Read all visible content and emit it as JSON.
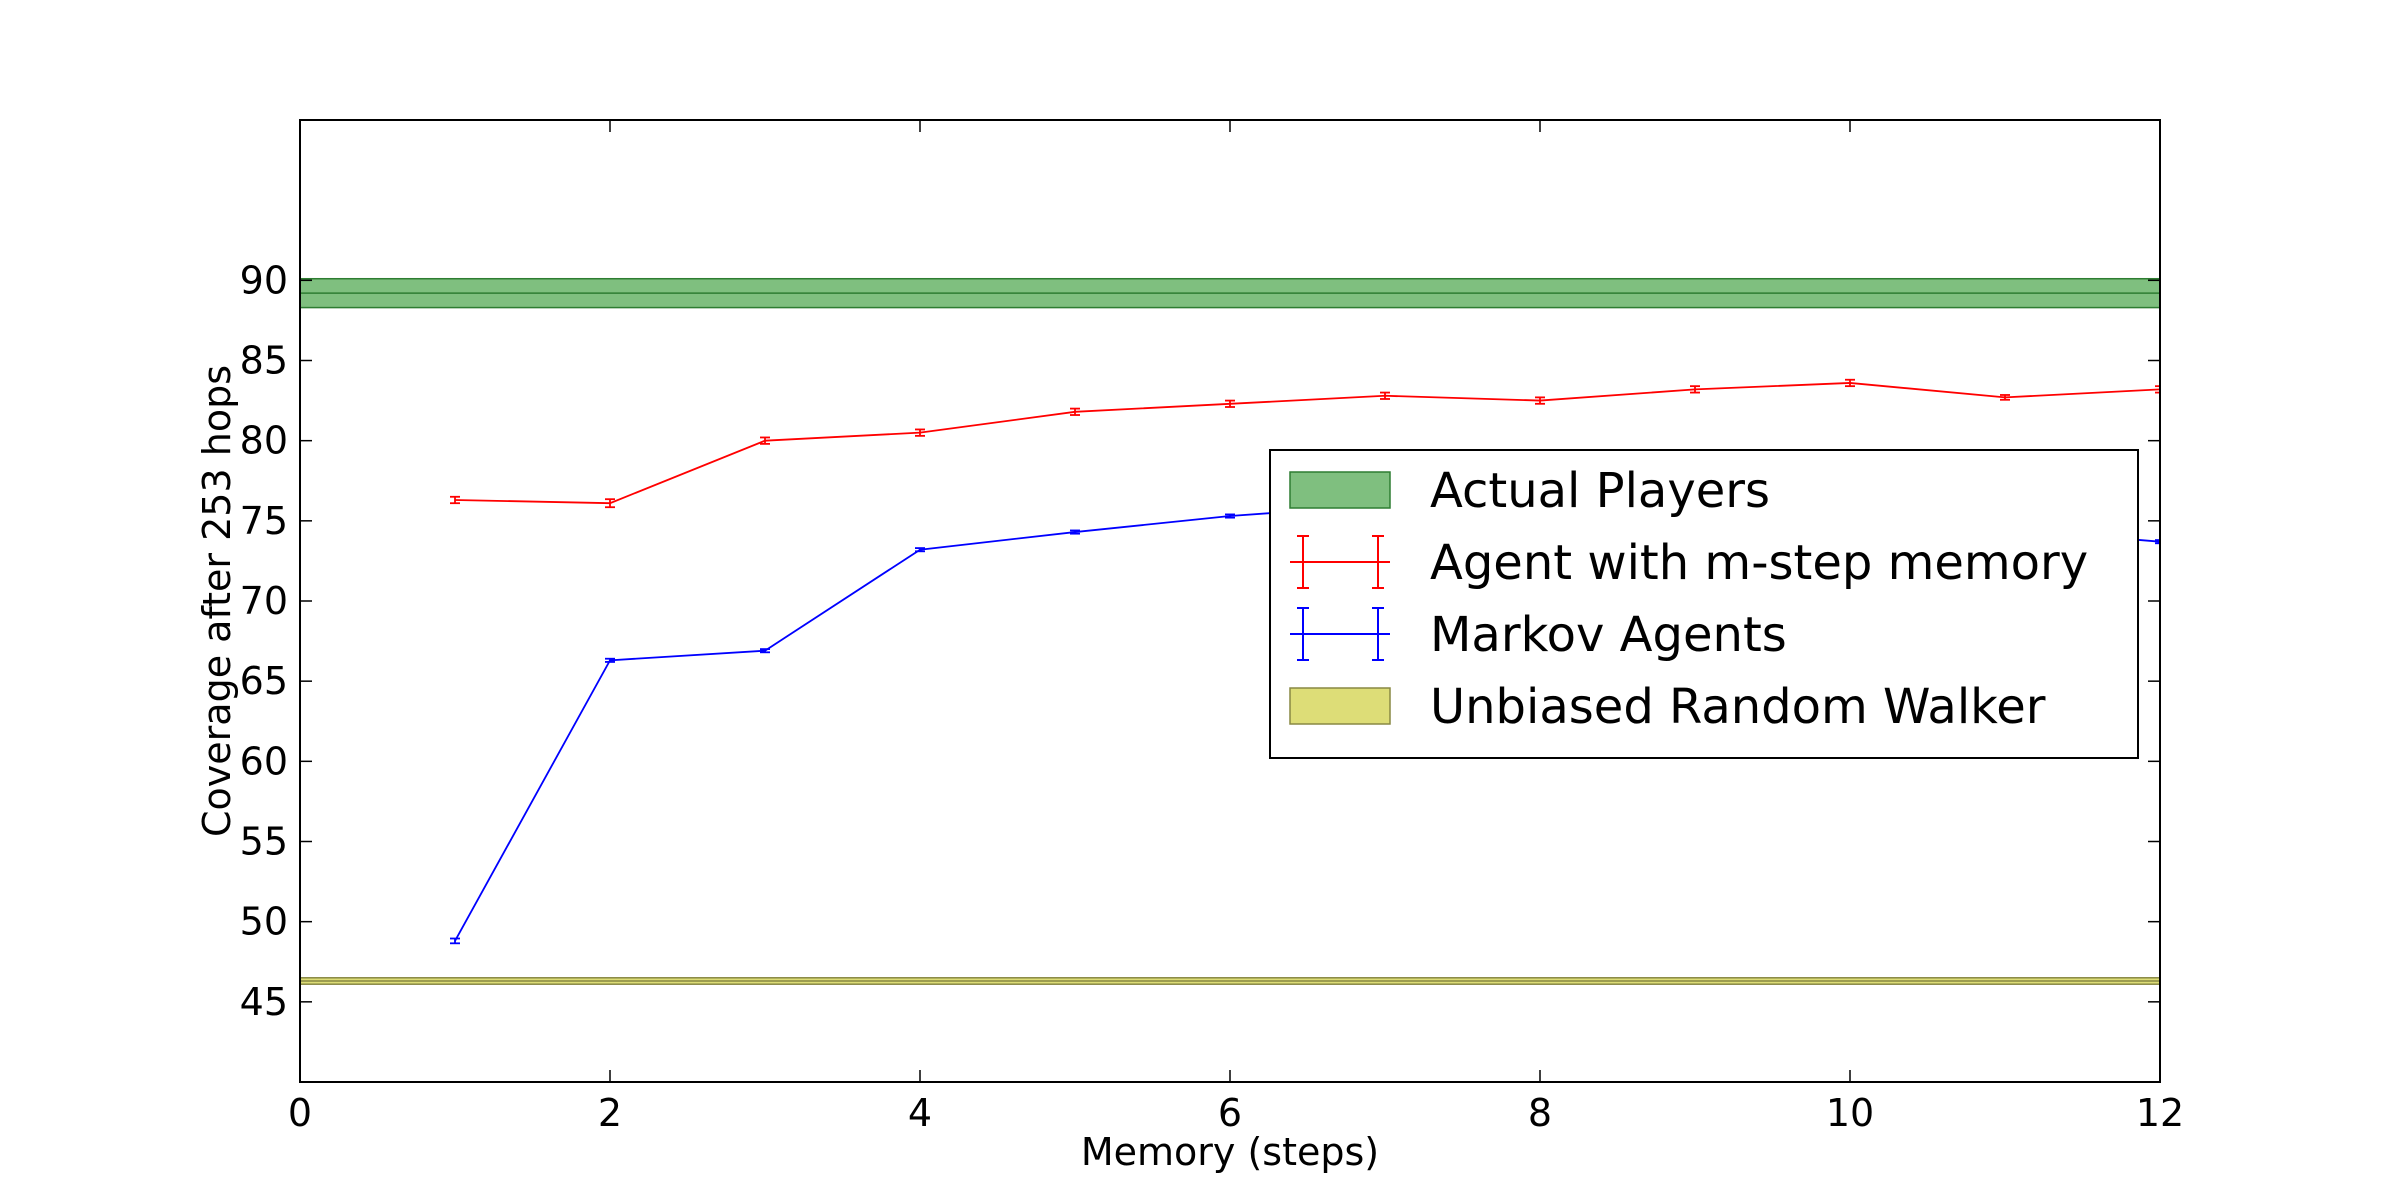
{
  "chart_data": {
    "type": "line",
    "title": "",
    "xlabel": "Memory (steps)",
    "ylabel": "Coverage after 253 hops",
    "xlim": [
      0,
      12
    ],
    "ylim": [
      40,
      100
    ],
    "x_ticks": [
      0,
      2,
      4,
      6,
      8,
      10,
      12
    ],
    "y_ticks": [
      45,
      50,
      55,
      60,
      65,
      70,
      75,
      80,
      85,
      90
    ],
    "grid": false,
    "legend_position": "center-right",
    "bands": [
      {
        "name": "Actual Players",
        "center": 89.2,
        "lower": 88.3,
        "upper": 90.1,
        "color": "#7fbf7f",
        "edge": "#2e7d32"
      },
      {
        "name": "Unbiased Random Walker",
        "center": 46.3,
        "lower": 46.1,
        "upper": 46.5,
        "color": "#dddd77",
        "edge": "#888844"
      }
    ],
    "series": [
      {
        "name": "Agent with m-step memory",
        "color": "#ff0000",
        "x": [
          1,
          2,
          3,
          4,
          5,
          6,
          7,
          8,
          9,
          10,
          11,
          12
        ],
        "y": [
          76.3,
          76.1,
          80.0,
          80.5,
          81.8,
          82.3,
          82.8,
          82.5,
          83.2,
          83.6,
          82.7,
          83.2
        ],
        "err": [
          0.2,
          0.25,
          0.2,
          0.2,
          0.2,
          0.2,
          0.2,
          0.2,
          0.2,
          0.2,
          0.15,
          0.2
        ]
      },
      {
        "name": "Markov Agents",
        "color": "#0000ff",
        "x": [
          1,
          2,
          3,
          4,
          5,
          6,
          7,
          8,
          9,
          10,
          11,
          12
        ],
        "y": [
          48.8,
          66.3,
          66.9,
          73.2,
          74.3,
          75.3,
          76.0,
          76.0,
          76.0,
          75.5,
          74.5,
          73.7
        ],
        "err": [
          0.15,
          0.1,
          0.1,
          0.1,
          0.1,
          0.1,
          0.1,
          0.1,
          0.1,
          0.1,
          0.1,
          0.1
        ]
      }
    ],
    "legend": [
      {
        "label": "Actual Players",
        "kind": "band",
        "color": "#7fbf7f",
        "edge": "#2e7d32"
      },
      {
        "label": "Agent with m-step memory",
        "kind": "errorline",
        "color": "#ff0000"
      },
      {
        "label": "Markov Agents",
        "kind": "errorline",
        "color": "#0000ff"
      },
      {
        "label": "Unbiased Random Walker",
        "kind": "band",
        "color": "#dddd77",
        "edge": "#888844"
      }
    ]
  }
}
